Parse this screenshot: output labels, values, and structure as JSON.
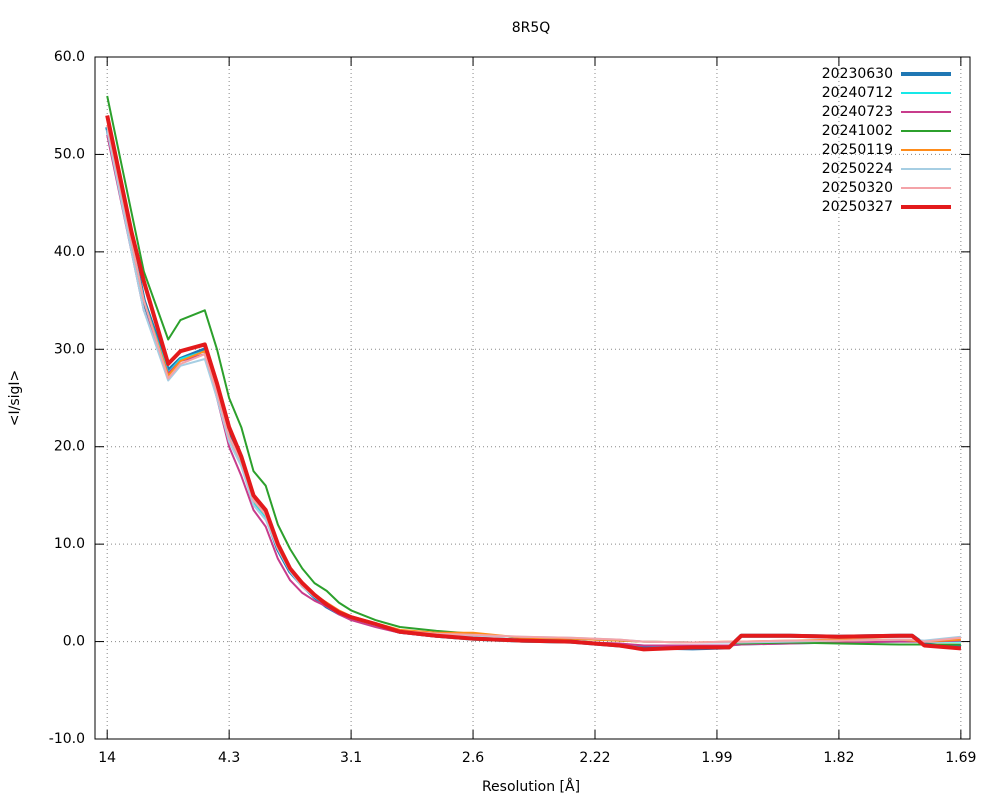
{
  "chart_data": {
    "type": "line",
    "title": "8R5Q",
    "xlabel": "Resolution [Å]",
    "ylabel": "<I/sigI>",
    "x": [
      0,
      2,
      3,
      5,
      6,
      8,
      9,
      10,
      11,
      12,
      13,
      14,
      15,
      16,
      17,
      18,
      19,
      20,
      22,
      24,
      27,
      30,
      34,
      38,
      42,
      44,
      48,
      51,
      52,
      56,
      60,
      65,
      66,
      67,
      70
    ],
    "xlim": [
      -1,
      70.75
    ],
    "xticks": [
      {
        "value": 0,
        "label": "14"
      },
      {
        "value": 10,
        "label": "4.3"
      },
      {
        "value": 20,
        "label": "3.1"
      },
      {
        "value": 30,
        "label": "2.6"
      },
      {
        "value": 40,
        "label": "2.22"
      },
      {
        "value": 50,
        "label": "1.99"
      },
      {
        "value": 60,
        "label": "1.82"
      },
      {
        "value": 70,
        "label": "1.69"
      }
    ],
    "ylim": [
      -10,
      60
    ],
    "yticks": [
      {
        "value": -10,
        "label": "-10.0"
      },
      {
        "value": 0,
        "label": "0.0"
      },
      {
        "value": 10,
        "label": "10.0"
      },
      {
        "value": 20,
        "label": "20.0"
      },
      {
        "value": 30,
        "label": "30.0"
      },
      {
        "value": 40,
        "label": "40.0"
      },
      {
        "value": 50,
        "label": "50.0"
      },
      {
        "value": 60,
        "label": "60.0"
      }
    ],
    "grid": true,
    "legend": "top-right",
    "series": [
      {
        "name": "20230630",
        "color": "#1f77b4",
        "line_width": 4,
        "values": [
          52.8,
          41,
          35,
          27.8,
          29,
          30,
          25.5,
          21.5,
          18.5,
          14.5,
          13,
          9.5,
          7.2,
          5.8,
          4.6,
          3.6,
          2.9,
          2.4,
          1.7,
          1.0,
          0.6,
          0.3,
          0.1,
          0.0,
          -0.4,
          -0.6,
          -0.7,
          -0.6,
          0.6,
          0.6,
          0.5,
          0.6,
          0.6,
          -0.3,
          -0.6
        ]
      },
      {
        "name": "20240712",
        "color": "#17e8e8",
        "line_width": 2,
        "values": [
          52.8,
          41,
          35,
          27.6,
          29,
          29.8,
          25.3,
          21,
          18.3,
          14.3,
          12.8,
          9.5,
          7.2,
          5.7,
          4.6,
          3.7,
          2.9,
          2.3,
          1.6,
          0.9,
          0.5,
          0.2,
          0.0,
          -0.1,
          -0.3,
          -0.4,
          -0.5,
          -0.4,
          -0.3,
          -0.2,
          -0.1,
          0.0,
          0.0,
          0.0,
          0.0
        ]
      },
      {
        "name": "20240723",
        "color": "#c83c8c",
        "line_width": 2,
        "values": [
          52,
          40,
          34,
          27.5,
          28.8,
          29.5,
          25,
          20,
          17,
          13.5,
          11.8,
          8.5,
          6.3,
          5,
          4.2,
          3.6,
          2.8,
          2.2,
          1.5,
          0.9,
          0.5,
          0.3,
          0.1,
          0.0,
          -0.2,
          -0.4,
          -0.4,
          -0.4,
          -0.3,
          -0.2,
          -0.1,
          0.0,
          0.0,
          0.0,
          0.1
        ]
      },
      {
        "name": "20241002",
        "color": "#2ca02c",
        "line_width": 2,
        "values": [
          56,
          44,
          38,
          31,
          33,
          34,
          30,
          25,
          22,
          17.5,
          16,
          12,
          9.5,
          7.5,
          6,
          5.2,
          4,
          3.2,
          2.2,
          1.5,
          1.1,
          0.8,
          0.4,
          0.3,
          0.1,
          0.0,
          -0.1,
          -0.1,
          -0.2,
          -0.1,
          -0.2,
          -0.3,
          -0.3,
          -0.3,
          -0.3
        ]
      },
      {
        "name": "20250119",
        "color": "#ff8c1a",
        "line_width": 2,
        "values": [
          53,
          41,
          35,
          27.3,
          28.8,
          29.8,
          25.5,
          21,
          18.5,
          14.5,
          13,
          9.8,
          7.5,
          5.8,
          4.8,
          4,
          3.2,
          2.6,
          1.9,
          1.2,
          0.9,
          0.9,
          0.4,
          0.3,
          0.1,
          0.0,
          -0.1,
          0.0,
          0.0,
          0.1,
          0.2,
          0.2,
          0.1,
          0.0,
          0.2
        ]
      },
      {
        "name": "20250224",
        "color": "#a6cee3",
        "line_width": 2,
        "values": [
          52.5,
          40,
          34,
          26.8,
          28.3,
          29,
          25,
          20.5,
          18,
          14,
          12.5,
          9.5,
          7.2,
          5.6,
          4.6,
          3.8,
          3.0,
          2.4,
          1.7,
          1.0,
          0.8,
          0.6,
          0.5,
          0.4,
          0.2,
          0.0,
          -0.1,
          -0.1,
          -0.1,
          0.0,
          0.1,
          0.2,
          0.2,
          0.1,
          0.5
        ]
      },
      {
        "name": "20250320",
        "color": "#f4a3a8",
        "line_width": 2,
        "values": [
          53,
          41,
          35,
          27,
          28.5,
          29.5,
          25.5,
          21,
          18.5,
          14.5,
          13,
          9.6,
          7.4,
          5.7,
          4.7,
          3.9,
          3.1,
          2.5,
          1.8,
          1.1,
          0.8,
          0.7,
          0.5,
          0.4,
          0.2,
          0.0,
          -0.1,
          0.0,
          0.0,
          0.1,
          0.1,
          0.2,
          0.2,
          0.0,
          0.4
        ]
      },
      {
        "name": "20250327",
        "color": "#e31a1c",
        "line_width": 4,
        "values": [
          54,
          42,
          37,
          28.5,
          29.8,
          30.5,
          26.5,
          22,
          19,
          15,
          13.5,
          10,
          7.5,
          6,
          4.8,
          3.8,
          3,
          2.5,
          1.8,
          1.0,
          0.6,
          0.3,
          0.1,
          0.0,
          -0.4,
          -0.8,
          -0.6,
          -0.6,
          0.6,
          0.6,
          0.5,
          0.6,
          0.6,
          -0.4,
          -0.7
        ]
      }
    ]
  }
}
